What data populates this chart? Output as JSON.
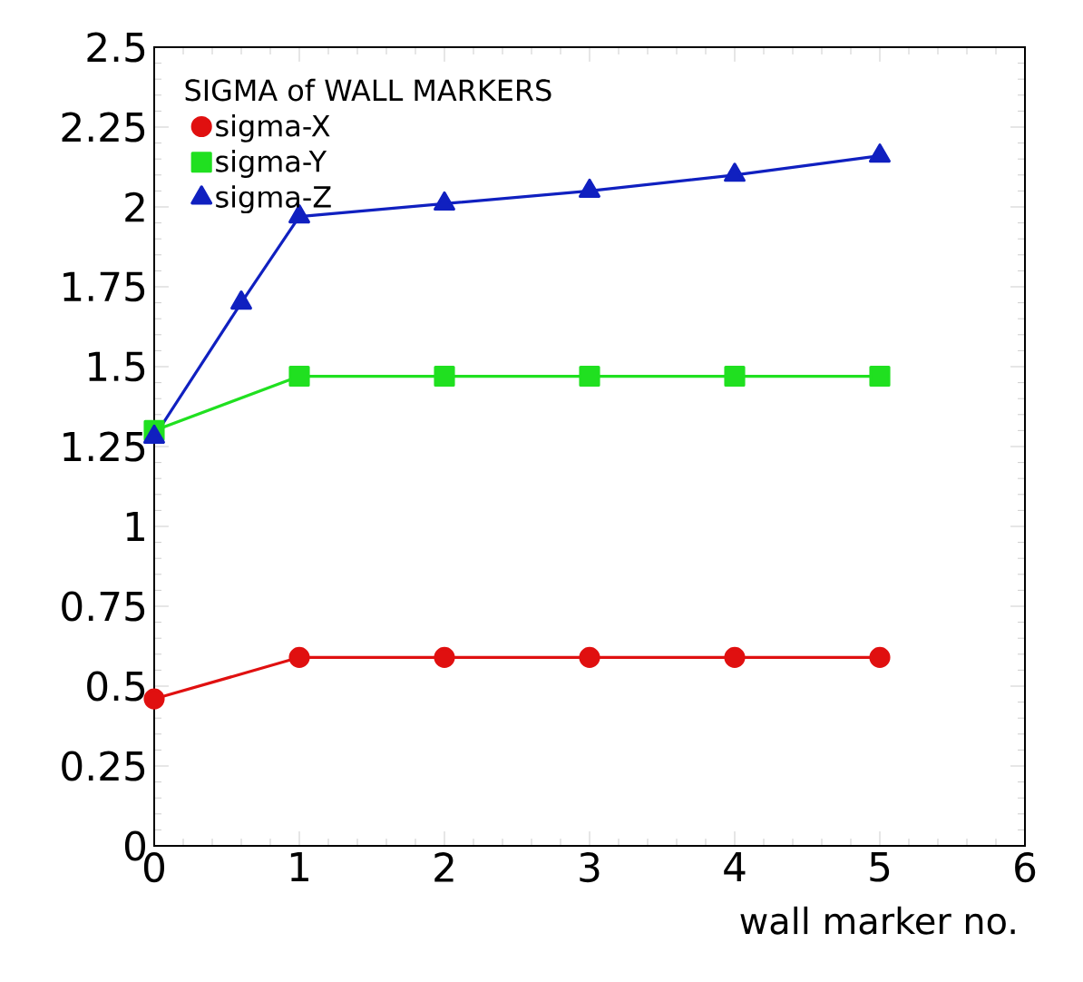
{
  "chart_data": {
    "type": "line",
    "legend_title": "SIGMA of WALL MARKERS",
    "xlabel": "wall marker no.",
    "xlim": [
      0,
      6
    ],
    "xticks": [
      0,
      1,
      2,
      3,
      4,
      5,
      6
    ],
    "ylim": [
      0,
      2.5
    ],
    "yticks": [
      0,
      0.25,
      0.5,
      0.75,
      1,
      1.25,
      1.5,
      1.75,
      2,
      2.25,
      2.5
    ],
    "legend": "top left",
    "grid": false,
    "series": [
      {
        "name": "sigma-X",
        "color": "#e01010",
        "marker": "circle",
        "x": [
          0,
          1,
          2,
          3,
          4,
          5
        ],
        "values": [
          0.46,
          0.59,
          0.59,
          0.59,
          0.59,
          0.59
        ]
      },
      {
        "name": "sigma-Y",
        "color": "#20e020",
        "marker": "square",
        "x": [
          0,
          1,
          2,
          3,
          4,
          5
        ],
        "values": [
          1.3,
          1.47,
          1.47,
          1.47,
          1.47,
          1.47
        ]
      },
      {
        "name": "sigma-Z",
        "color": "#1020c0",
        "marker": "triangle",
        "x": [
          0,
          0.6,
          1,
          2,
          3,
          4,
          5
        ],
        "values": [
          1.28,
          1.7,
          1.97,
          2.01,
          2.05,
          2.1,
          2.16
        ]
      }
    ]
  }
}
